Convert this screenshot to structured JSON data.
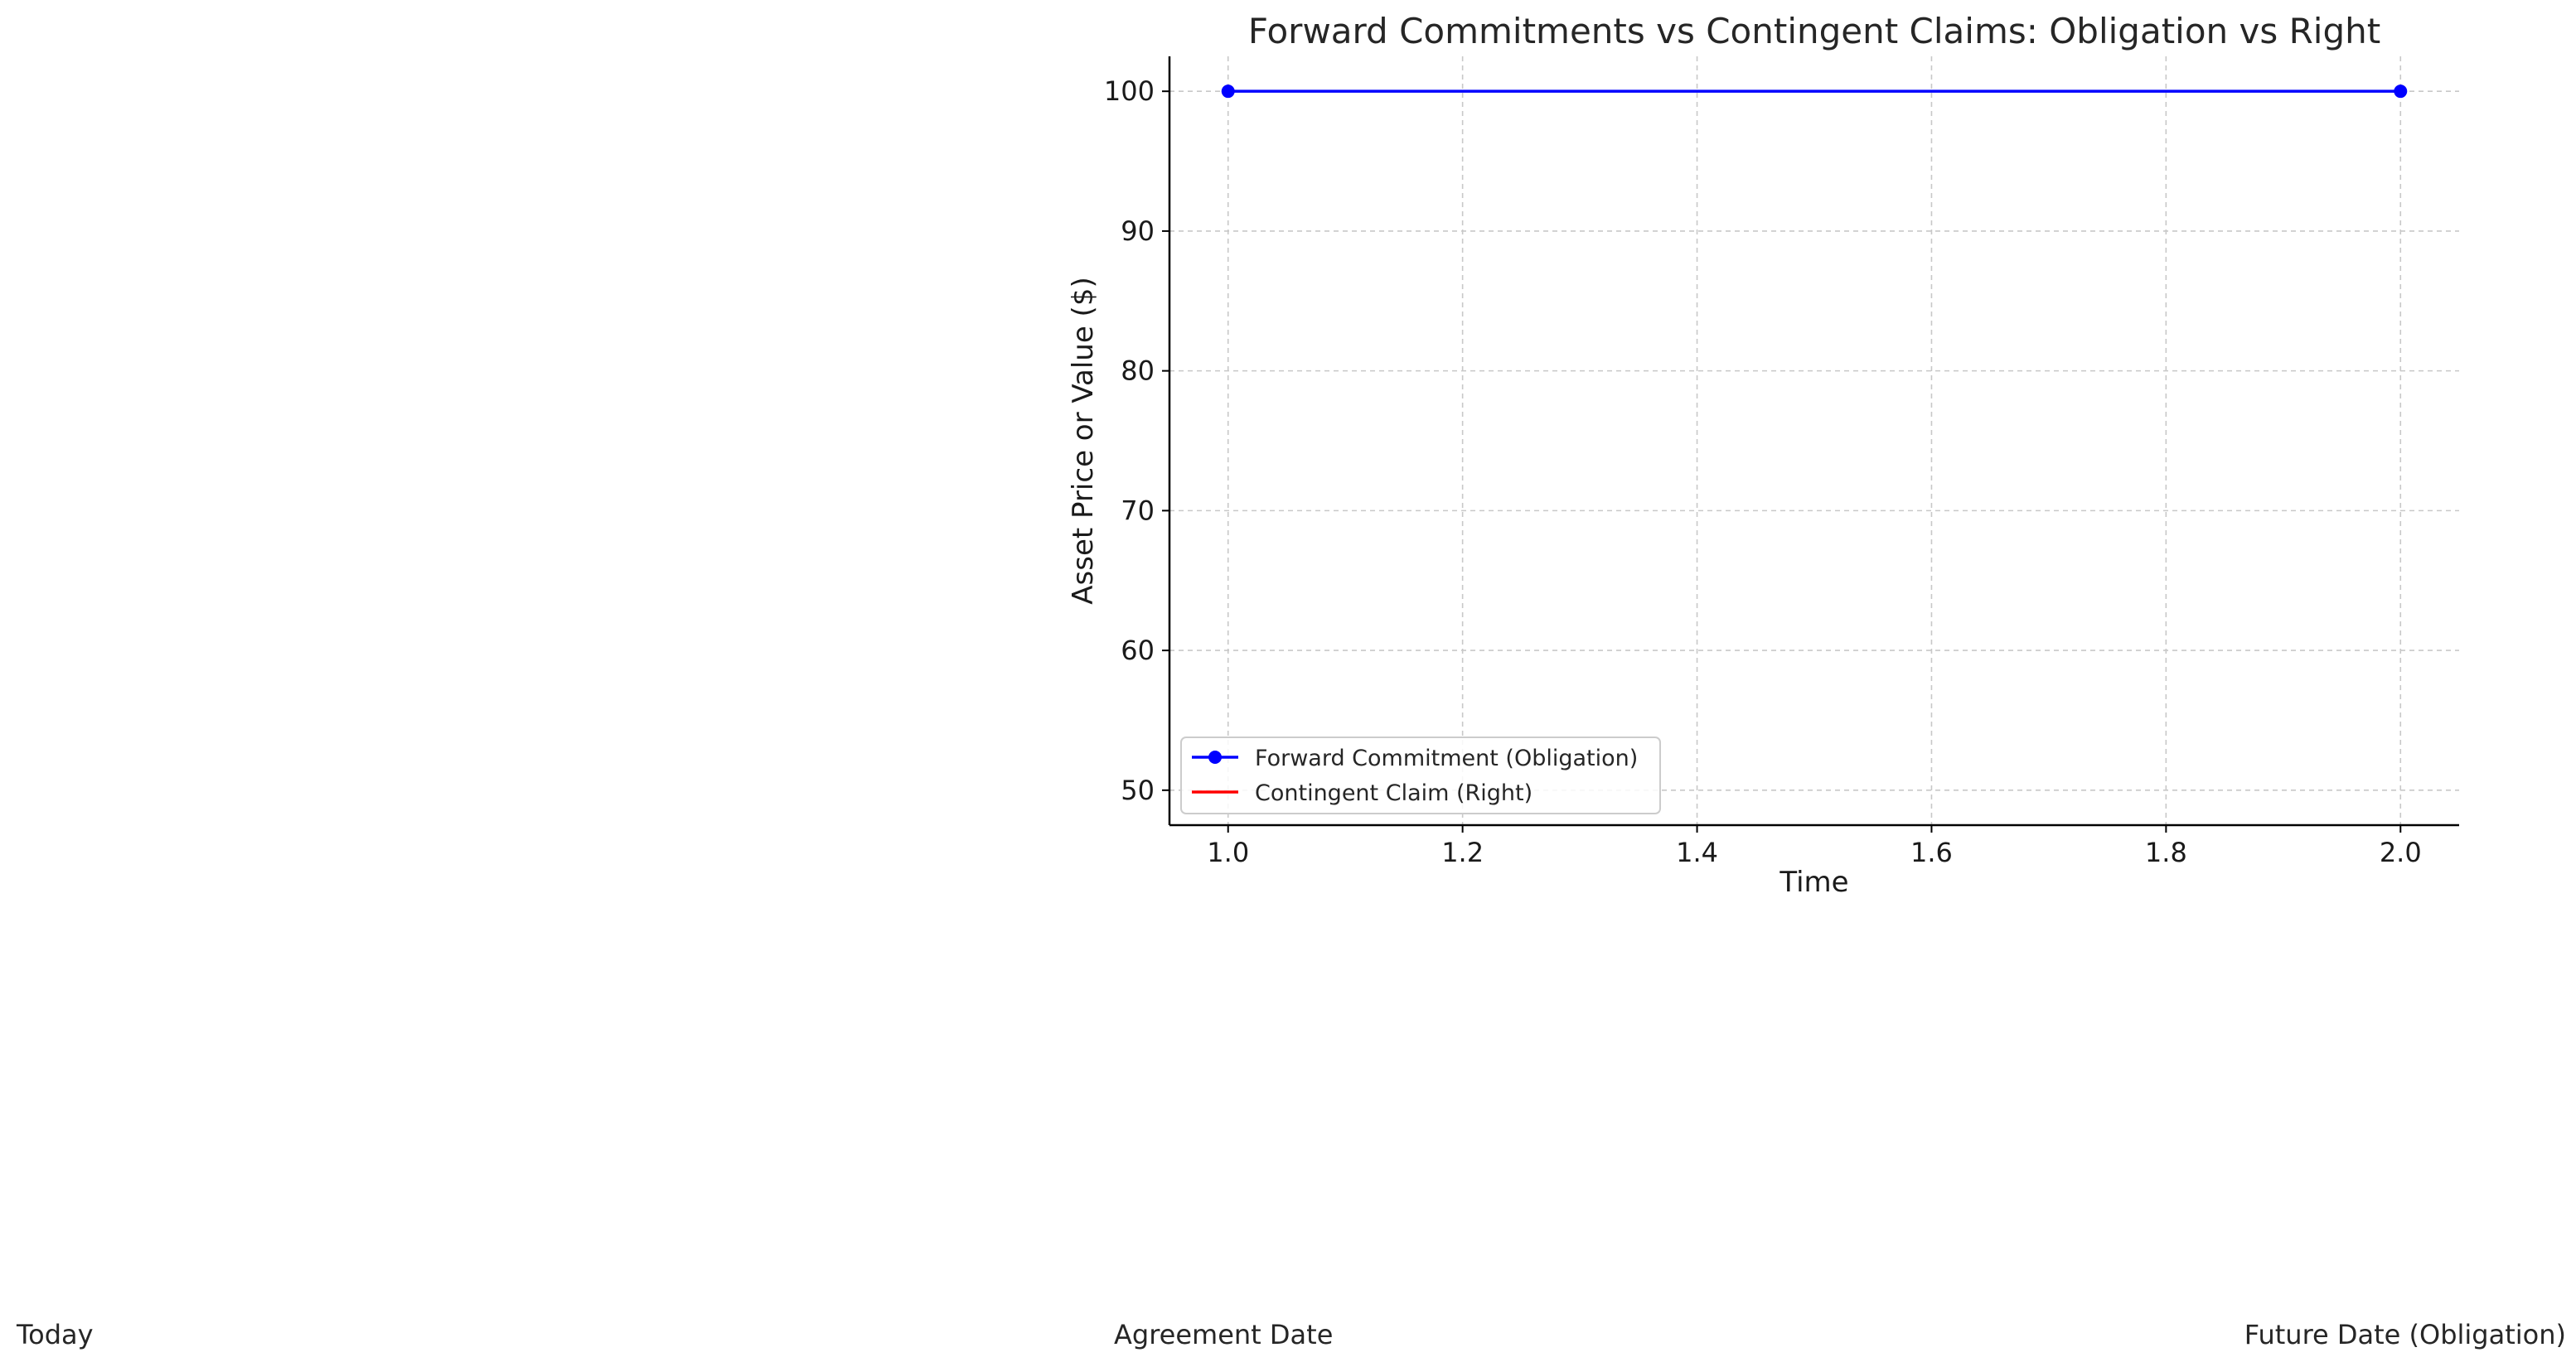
{
  "chart_data": {
    "type": "line",
    "title": "Forward Commitments vs Contingent Claims: Obligation vs Right",
    "xlabel": "Time",
    "ylabel": "Asset Price or Value ($)",
    "xlim": [
      0.95,
      2.05
    ],
    "ylim": [
      47.5,
      102.5
    ],
    "xticks": [
      1.0,
      1.2,
      1.4,
      1.6,
      1.8,
      2.0
    ],
    "xtick_labels": [
      "1.0",
      "1.2",
      "1.4",
      "1.6",
      "1.8",
      "2.0"
    ],
    "yticks": [
      50,
      60,
      70,
      80,
      90,
      100
    ],
    "ytick_labels": [
      "50",
      "60",
      "70",
      "80",
      "90",
      "100"
    ],
    "grid": true,
    "legend_position": "lower-left",
    "series": [
      {
        "name": "Forward Commitment (Obligation)",
        "color": "#0000ff",
        "marker": "circle",
        "x": [
          1.0,
          2.0
        ],
        "y": [
          100,
          100
        ]
      },
      {
        "name": "Contingent Claim (Right)",
        "color": "#ff0000",
        "marker": "none",
        "x": [],
        "y": []
      }
    ],
    "annotations": [
      "Today",
      "Agreement Date",
      "Future Date (Obligation)"
    ]
  }
}
